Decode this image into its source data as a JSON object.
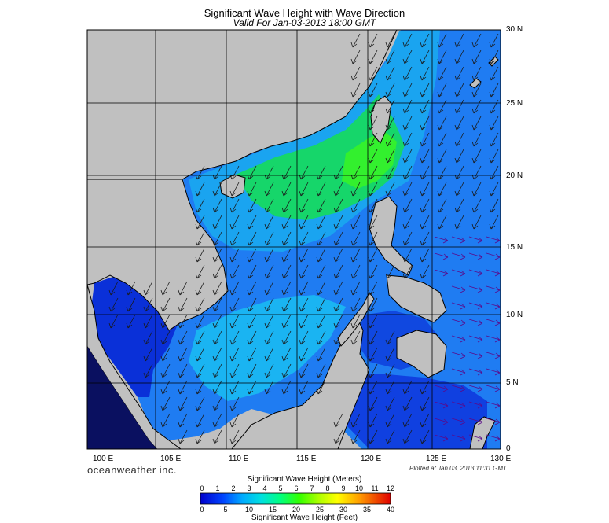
{
  "header": {
    "title": "Significant Wave Height with Wave Direction",
    "subtitle": "Valid For Jan-03-2013 18:00 GMT"
  },
  "map": {
    "lat_labels": [
      "30 N",
      "25 N",
      "20 N",
      "15 N",
      "10 N",
      "5 N",
      "0"
    ],
    "lon_labels": [
      "100 E",
      "105 E",
      "110 E",
      "115 E",
      "120 E",
      "125 E",
      "130 E"
    ],
    "colors": {
      "land": "#c0c0c0",
      "arrow": "#1a1a1a",
      "arrow_east": "#5a0a8a"
    }
  },
  "footer": {
    "brand": "oceanweather inc.",
    "plotted": "Plotted at Jan 03, 2013 11:31 GMT"
  },
  "colorbar": {
    "meters_title": "Significant Wave Height (Meters)",
    "feet_title": "Significant Wave Height (Feet)",
    "meter_ticks": [
      "0",
      "1",
      "2",
      "3",
      "4",
      "5",
      "6",
      "7",
      "8",
      "9",
      "10",
      "11",
      "12"
    ],
    "feet_ticks": [
      "0",
      "5",
      "10",
      "15",
      "20",
      "25",
      "30",
      "35",
      "40"
    ],
    "colors": [
      "#0000cc",
      "#0044ff",
      "#0088ff",
      "#00ccff",
      "#00e0c0",
      "#00ff66",
      "#33ff00",
      "#99ff00",
      "#ffff00",
      "#ffcc00",
      "#ff8800",
      "#ff3300",
      "#cc0000"
    ]
  }
}
